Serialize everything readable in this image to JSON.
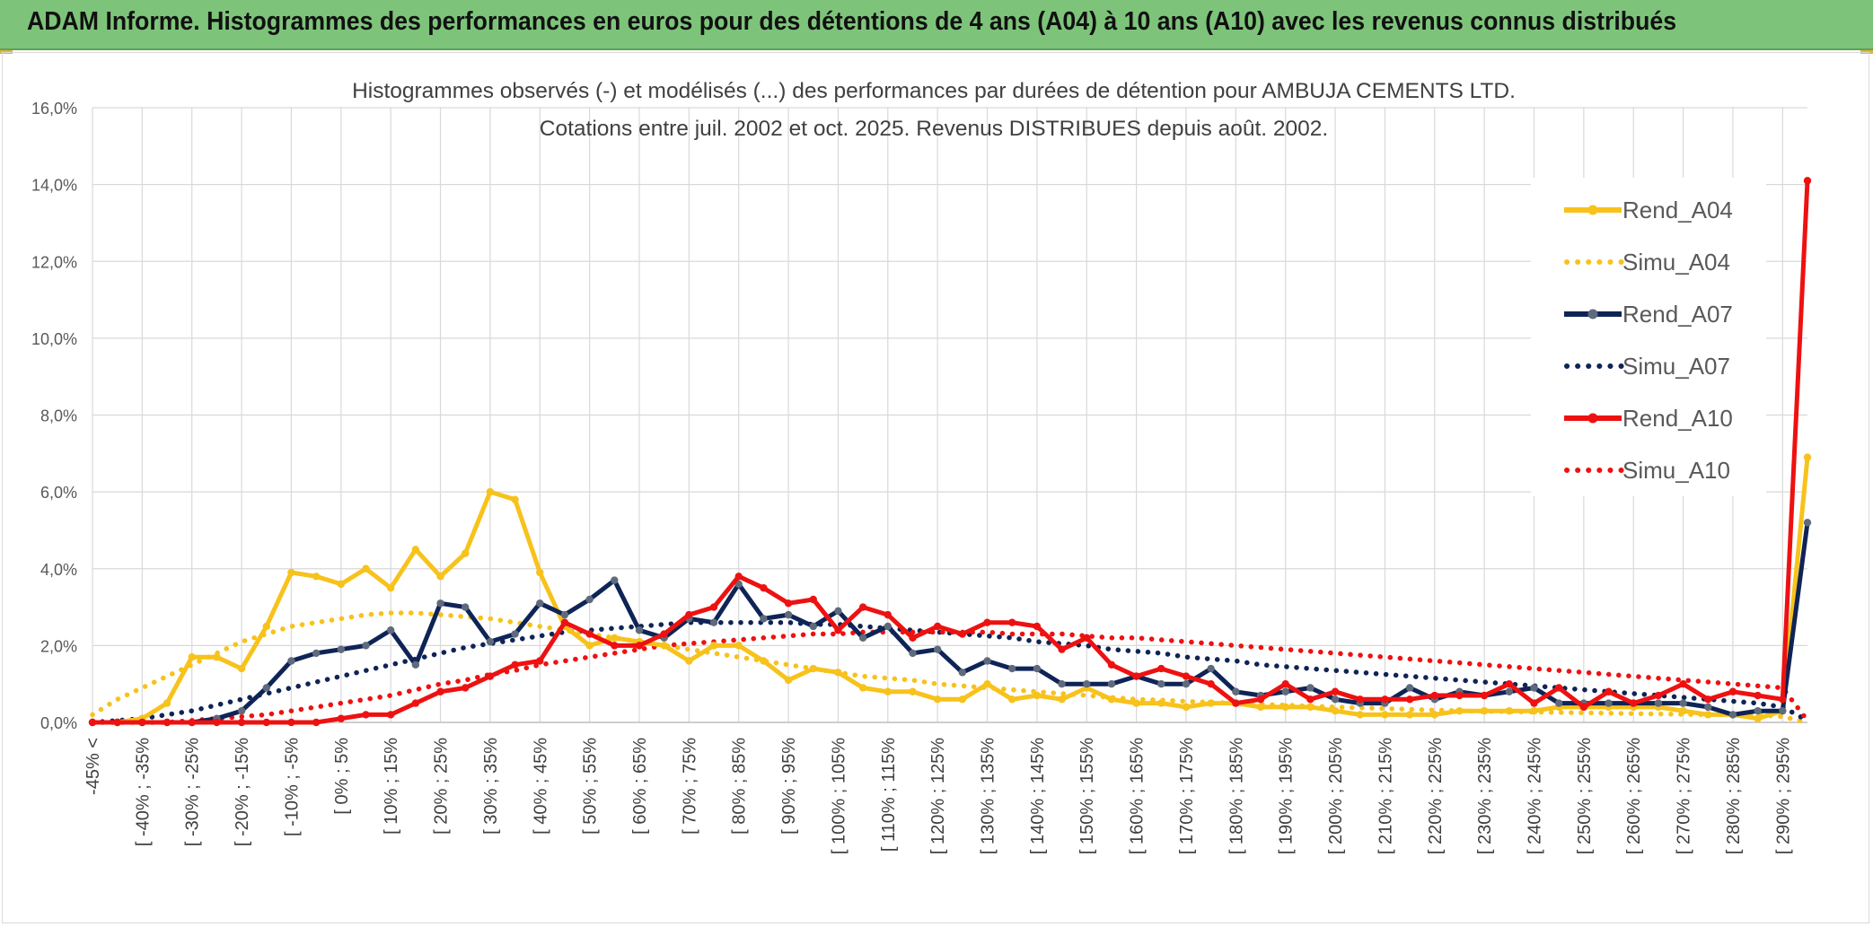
{
  "header": {
    "title": "ADAM Informe. Histogrammes des performances en euros pour des détentions de 4 ans (A04) à 10 ans (A10) avec les revenus connus distribués"
  },
  "colors": {
    "banner_bg": "#7dc47a",
    "A04": "#f7c21b",
    "A07": "#0f2456",
    "A07_marker": "#5f6a7d",
    "A10": "#ee1111",
    "grid": "#d9d9d9"
  },
  "chart_data": {
    "type": "line",
    "title": "Histogrammes observés (-) et modélisés (...) des performances par durées de détention pour AMBUJA CEMENTS LTD.",
    "subtitle": "Cotations entre juil. 2002 et oct. 2025. Revenus DISTRIBUES depuis août. 2002.",
    "xlabel": "",
    "ylabel": "",
    "ylim": [
      0,
      16
    ],
    "yticks": [
      "0,0%",
      "2,0%",
      "4,0%",
      "6,0%",
      "8,0%",
      "10,0%",
      "12,0%",
      "14,0%",
      "16,0%"
    ],
    "grid": true,
    "legend_position": "right",
    "x_tick_labels": [
      "-45% <",
      "[ -40% ; -35%",
      "[ -30% ; -25%",
      "[ -20% ; -15%",
      "[ -10% ; -5%",
      "[ 0% ; 5%",
      "[ 10% ; 15%",
      "[ 20% ; 25%",
      "[ 30% ; 35%",
      "[ 40% ; 45%",
      "[ 50% ; 55%",
      "[ 60% ; 65%",
      "[ 70% ; 75%",
      "[ 80% ; 85%",
      "[ 90% ; 95%",
      "[ 100% ; 105%",
      "[ 110% ; 115%",
      "[ 120% ; 125%",
      "[ 130% ; 135%",
      "[ 140% ; 145%",
      "[ 150% ; 155%",
      "[ 160% ; 165%",
      "[ 170% ; 175%",
      "[ 180% ; 185%",
      "[ 190% ; 195%",
      "[ 200% ; 205%",
      "[ 210% ; 215%",
      "[ 220% ; 225%",
      "[ 230% ; 235%",
      "[ 240% ; 245%",
      "[ 250% ; 255%",
      "[ 260% ; 265%",
      "[ 270% ; 275%",
      "[ 280% ; 285%",
      "[ 290% ; 295%"
    ],
    "num_bins": 70,
    "series": [
      {
        "name": "Rend_A04",
        "style": "solid",
        "color": "#f7c21b",
        "values": [
          0.0,
          0.0,
          0.1,
          0.5,
          1.7,
          1.7,
          1.4,
          2.5,
          3.9,
          3.8,
          3.6,
          4.0,
          3.5,
          4.5,
          3.8,
          4.4,
          6.0,
          5.8,
          3.9,
          2.5,
          2.0,
          2.2,
          2.1,
          2.0,
          1.6,
          2.0,
          2.0,
          1.6,
          1.1,
          1.4,
          1.3,
          0.9,
          0.8,
          0.8,
          0.6,
          0.6,
          1.0,
          0.6,
          0.7,
          0.6,
          0.9,
          0.6,
          0.5,
          0.5,
          0.4,
          0.5,
          0.5,
          0.4,
          0.4,
          0.4,
          0.3,
          0.2,
          0.2,
          0.2,
          0.2,
          0.3,
          0.3,
          0.3,
          0.3,
          0.4,
          0.4,
          0.4,
          0.4,
          0.4,
          0.3,
          0.2,
          0.2,
          0.1,
          0.3,
          6.9
        ]
      },
      {
        "name": "Simu_A04",
        "style": "dotted",
        "color": "#f7c21b",
        "values": [
          0.2,
          0.6,
          0.9,
          1.2,
          1.5,
          1.8,
          2.1,
          2.3,
          2.5,
          2.6,
          2.7,
          2.8,
          2.85,
          2.85,
          2.8,
          2.75,
          2.7,
          2.6,
          2.5,
          2.4,
          2.3,
          2.2,
          2.1,
          2.0,
          1.9,
          1.8,
          1.7,
          1.6,
          1.5,
          1.4,
          1.3,
          1.2,
          1.15,
          1.1,
          1.0,
          0.95,
          0.9,
          0.85,
          0.8,
          0.75,
          0.7,
          0.65,
          0.6,
          0.58,
          0.55,
          0.52,
          0.5,
          0.47,
          0.45,
          0.42,
          0.4,
          0.38,
          0.36,
          0.34,
          0.32,
          0.3,
          0.29,
          0.28,
          0.27,
          0.26,
          0.25,
          0.24,
          0.23,
          0.22,
          0.21,
          0.2,
          0.2,
          0.2,
          0.15,
          0.0
        ]
      },
      {
        "name": "Rend_A07",
        "style": "solid",
        "color": "#0f2456",
        "values": [
          0.0,
          0.0,
          0.0,
          0.0,
          0.0,
          0.1,
          0.3,
          0.9,
          1.6,
          1.8,
          1.9,
          2.0,
          2.4,
          1.5,
          3.1,
          3.0,
          2.1,
          2.3,
          3.1,
          2.8,
          3.2,
          3.7,
          2.4,
          2.2,
          2.7,
          2.6,
          3.6,
          2.7,
          2.8,
          2.5,
          2.9,
          2.2,
          2.5,
          1.8,
          1.9,
          1.3,
          1.6,
          1.4,
          1.4,
          1.0,
          1.0,
          1.0,
          1.2,
          1.0,
          1.0,
          1.4,
          0.8,
          0.7,
          0.8,
          0.9,
          0.6,
          0.5,
          0.5,
          0.9,
          0.6,
          0.8,
          0.7,
          0.8,
          0.9,
          0.5,
          0.5,
          0.5,
          0.5,
          0.5,
          0.5,
          0.4,
          0.2,
          0.3,
          0.3,
          5.2
        ]
      },
      {
        "name": "Simu_A07",
        "style": "dotted",
        "color": "#0f2456",
        "values": [
          0.0,
          0.05,
          0.1,
          0.2,
          0.3,
          0.45,
          0.6,
          0.75,
          0.9,
          1.05,
          1.2,
          1.35,
          1.5,
          1.65,
          1.8,
          1.95,
          2.05,
          2.15,
          2.25,
          2.35,
          2.4,
          2.45,
          2.5,
          2.55,
          2.6,
          2.6,
          2.6,
          2.6,
          2.6,
          2.55,
          2.55,
          2.5,
          2.45,
          2.4,
          2.35,
          2.3,
          2.25,
          2.2,
          2.1,
          2.05,
          2.0,
          1.9,
          1.85,
          1.8,
          1.7,
          1.65,
          1.6,
          1.5,
          1.45,
          1.4,
          1.35,
          1.3,
          1.25,
          1.2,
          1.15,
          1.1,
          1.05,
          1.0,
          0.95,
          0.9,
          0.85,
          0.8,
          0.75,
          0.7,
          0.65,
          0.6,
          0.55,
          0.5,
          0.4,
          0.05
        ]
      },
      {
        "name": "Rend_A10",
        "style": "solid",
        "color": "#ee1111",
        "values": [
          0.0,
          0.0,
          0.0,
          0.0,
          0.0,
          0.0,
          0.0,
          0.0,
          0.0,
          0.0,
          0.1,
          0.2,
          0.2,
          0.5,
          0.8,
          0.9,
          1.2,
          1.5,
          1.6,
          2.6,
          2.3,
          2.0,
          2.0,
          2.3,
          2.8,
          3.0,
          3.8,
          3.5,
          3.1,
          3.2,
          2.4,
          3.0,
          2.8,
          2.2,
          2.5,
          2.3,
          2.6,
          2.6,
          2.5,
          1.9,
          2.2,
          1.5,
          1.2,
          1.4,
          1.2,
          1.0,
          0.5,
          0.6,
          1.0,
          0.6,
          0.8,
          0.6,
          0.6,
          0.6,
          0.7,
          0.7,
          0.7,
          1.0,
          0.5,
          0.9,
          0.4,
          0.8,
          0.5,
          0.7,
          1.0,
          0.6,
          0.8,
          0.7,
          0.6,
          14.1
        ]
      },
      {
        "name": "Simu_A10",
        "style": "dotted",
        "color": "#ee1111",
        "values": [
          0.0,
          0.0,
          0.0,
          0.0,
          0.05,
          0.1,
          0.15,
          0.2,
          0.3,
          0.4,
          0.5,
          0.6,
          0.7,
          0.85,
          1.0,
          1.1,
          1.25,
          1.35,
          1.5,
          1.6,
          1.7,
          1.8,
          1.9,
          2.0,
          2.05,
          2.1,
          2.15,
          2.2,
          2.25,
          2.3,
          2.3,
          2.35,
          2.35,
          2.35,
          2.35,
          2.35,
          2.35,
          2.3,
          2.3,
          2.3,
          2.25,
          2.2,
          2.2,
          2.15,
          2.1,
          2.05,
          2.0,
          1.95,
          1.9,
          1.85,
          1.8,
          1.75,
          1.7,
          1.65,
          1.6,
          1.55,
          1.5,
          1.45,
          1.4,
          1.35,
          1.3,
          1.25,
          1.2,
          1.15,
          1.1,
          1.05,
          1.0,
          0.95,
          0.9,
          0.05
        ]
      }
    ]
  }
}
